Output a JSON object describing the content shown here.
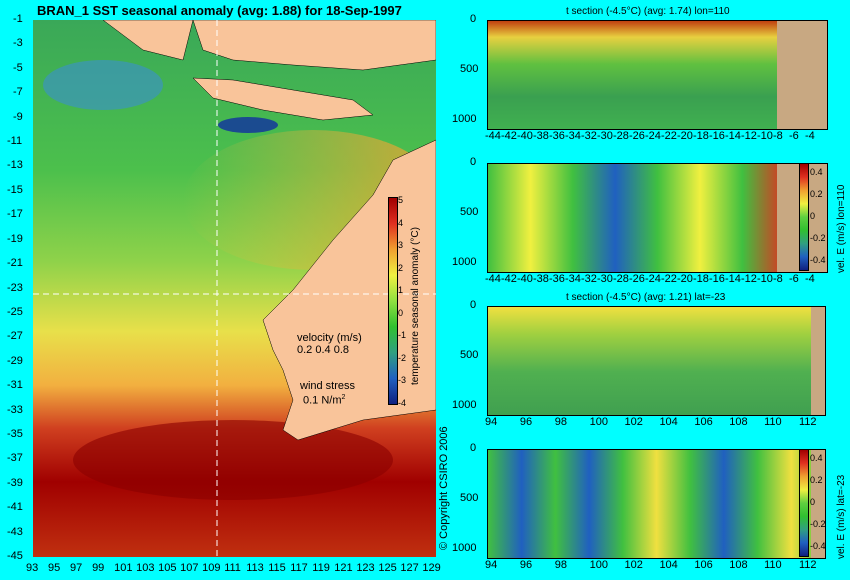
{
  "map": {
    "title": "BRAN_1  SST seasonal anomaly  (avg: 1.88) for 18-Sep-1997",
    "y_ticks": [
      "-1",
      "-3",
      "-5",
      "-7",
      "-9",
      "-11",
      "-13",
      "-15",
      "-17",
      "-19",
      "-21",
      "-23",
      "-25",
      "-27",
      "-29",
      "-31",
      "-33",
      "-35",
      "-37",
      "-39",
      "-41",
      "-43",
      "-45"
    ],
    "x_ticks": [
      "93",
      "95",
      "97",
      "99",
      "101",
      "103",
      "105",
      "107",
      "109",
      "111",
      "113",
      "115",
      "117",
      "119",
      "121",
      "123",
      "125",
      "127",
      "129"
    ],
    "colorbar_label": "temperature seasonal anomaly (°C)",
    "colorbar_ticks": [
      "5",
      "4",
      "3",
      "2",
      "1",
      "0",
      "-1",
      "-2",
      "-3",
      "-4"
    ],
    "velocity_label": "velocity (m/s)",
    "velocity_scale": "0.2 0.4 0.8",
    "wind_label": "wind stress",
    "wind_scale": "0.1 N/m",
    "copyright": "© Copyright CSIRO 2006"
  },
  "panels": [
    {
      "subtitle": "t section (-4.5°C) (avg: 1.74) lon=110",
      "y_ticks": [
        "0",
        "500",
        "1000"
      ],
      "x_ticks": [
        "-44",
        "-42",
        "-40",
        "-38",
        "-36",
        "-34",
        "-32",
        "-30",
        "-28",
        "-26",
        "-24",
        "-22",
        "-20",
        "-18",
        "-16",
        "-14",
        "-12",
        "-10",
        "-8",
        "-6",
        "-4"
      ]
    },
    {
      "subtitle": "",
      "y_ticks": [
        "0",
        "500",
        "1000"
      ],
      "x_ticks": [
        "-44",
        "-42",
        "-40",
        "-38",
        "-36",
        "-34",
        "-32",
        "-30",
        "-28",
        "-26",
        "-24",
        "-22",
        "-20",
        "-18",
        "-16",
        "-14",
        "-12",
        "-10",
        "-8",
        "-6",
        "-4"
      ],
      "colorbar_label": "vel. E (m/s) lon=110",
      "colorbar_ticks": [
        "0.4",
        "0.2",
        "0",
        "-0.2",
        "-0.4"
      ]
    },
    {
      "subtitle": "t section (-4.5°C) (avg: 1.21) lat=-23",
      "y_ticks": [
        "0",
        "500",
        "1000"
      ],
      "x_ticks": [
        "94",
        "96",
        "98",
        "100",
        "102",
        "104",
        "106",
        "108",
        "110",
        "112"
      ]
    },
    {
      "subtitle": "",
      "y_ticks": [
        "0",
        "500",
        "1000"
      ],
      "x_ticks": [
        "94",
        "96",
        "98",
        "100",
        "102",
        "104",
        "106",
        "108",
        "110",
        "112"
      ],
      "colorbar_label": "vel. E (m/s) lat=-23",
      "colorbar_ticks": [
        "0.4",
        "0.2",
        "0",
        "-0.2",
        "-0.4"
      ]
    }
  ],
  "chart_data": [
    {
      "type": "heatmap",
      "title": "BRAN_1  SST seasonal anomaly  (avg: 1.88) for 18-Sep-1997",
      "xlabel": "",
      "ylabel": "",
      "xlim": [
        93,
        130
      ],
      "ylim": [
        -45,
        0
      ],
      "colorbar": {
        "label": "temperature seasonal anomaly (°C)",
        "range": [
          -4,
          5
        ]
      },
      "x": [
        93,
        95,
        97,
        99,
        101,
        103,
        105,
        107,
        109,
        111,
        113,
        115,
        117,
        119,
        121,
        123,
        125,
        127,
        129
      ],
      "y": [
        -1,
        -3,
        -5,
        -7,
        -9,
        -11,
        -13,
        -15,
        -17,
        -19,
        -21,
        -23,
        -25,
        -27,
        -29,
        -31,
        -33,
        -35,
        -37,
        -39,
        -41,
        -43,
        -45
      ],
      "section_lines": {
        "lon": 110,
        "lat": -23
      }
    },
    {
      "type": "heatmap",
      "title": "t section (-4.5°C) (avg: 1.74) lon=110",
      "xlim": [
        -45,
        -3
      ],
      "ylim": [
        1050,
        0
      ],
      "xlabel": "",
      "ylabel": ""
    },
    {
      "type": "heatmap",
      "title": "",
      "xlim": [
        -45,
        -3
      ],
      "ylim": [
        1050,
        0
      ],
      "colorbar": {
        "label": "vel. E (m/s) lon=110",
        "range": [
          -0.5,
          0.5
        ]
      }
    },
    {
      "type": "heatmap",
      "title": "t section (-4.5°C) (avg: 1.21) lat=-23",
      "xlim": [
        93,
        114
      ],
      "ylim": [
        1050,
        0
      ]
    },
    {
      "type": "heatmap",
      "title": "",
      "xlim": [
        93,
        114
      ],
      "ylim": [
        1050,
        0
      ],
      "colorbar": {
        "label": "vel. E (m/s) lat=-23",
        "range": [
          -0.5,
          0.5
        ]
      }
    }
  ],
  "colors": {
    "background": "#00ffff",
    "land": "#f9c49a",
    "section_land": "#c8a882",
    "warm": "#a00000",
    "cool": "#00a000"
  }
}
